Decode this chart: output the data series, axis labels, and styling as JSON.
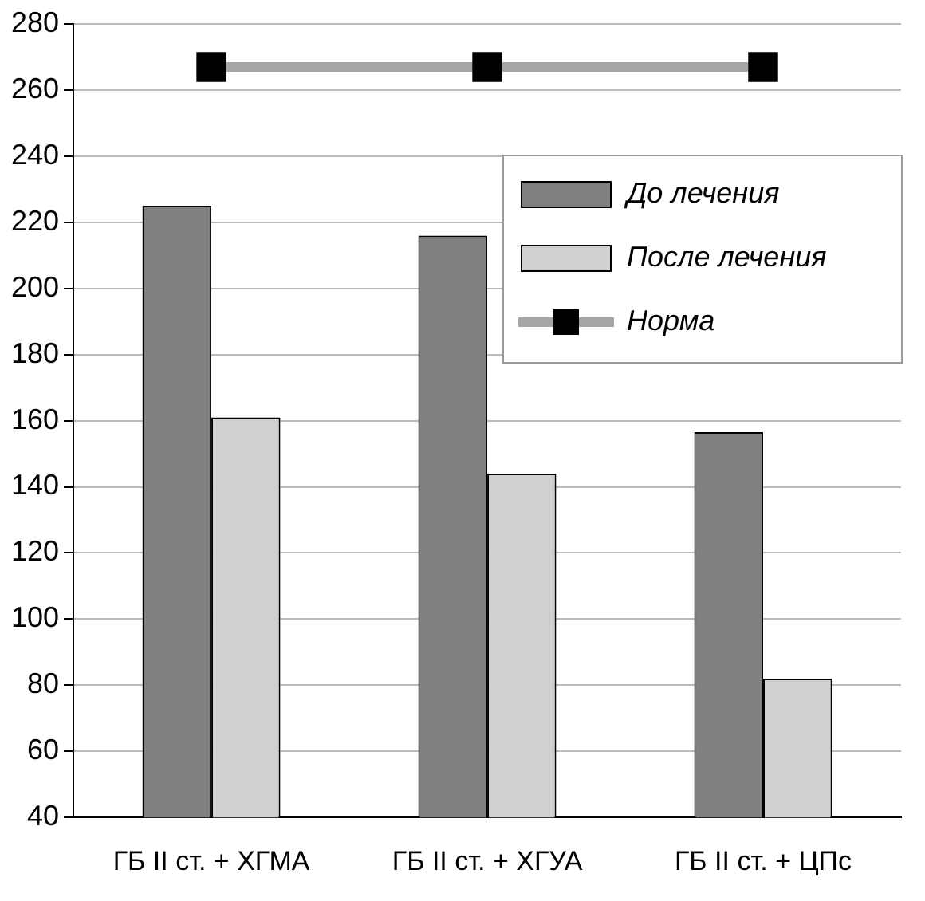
{
  "chart_data": {
    "type": "bar",
    "categories": [
      "ГБ II ст. + ХГМА",
      "ГБ II ст. + ХГУА",
      "ГБ II ст. + ЦПс"
    ],
    "series": [
      {
        "name": "До лечения",
        "color": "#808080",
        "values": [
          225,
          216,
          156.5
        ]
      },
      {
        "name": "После лечения",
        "color": "#d0d0d0",
        "values": [
          161,
          144,
          82
        ]
      },
      {
        "name": "Норма",
        "type": "line",
        "color": "#a6a6a6",
        "marker": "square",
        "values": [
          267,
          267,
          267
        ]
      }
    ],
    "ylim": [
      40,
      280
    ],
    "yticks": [
      40,
      60,
      80,
      100,
      120,
      140,
      160,
      180,
      200,
      220,
      240,
      260,
      280
    ],
    "grid": "y",
    "legend": "top right"
  }
}
